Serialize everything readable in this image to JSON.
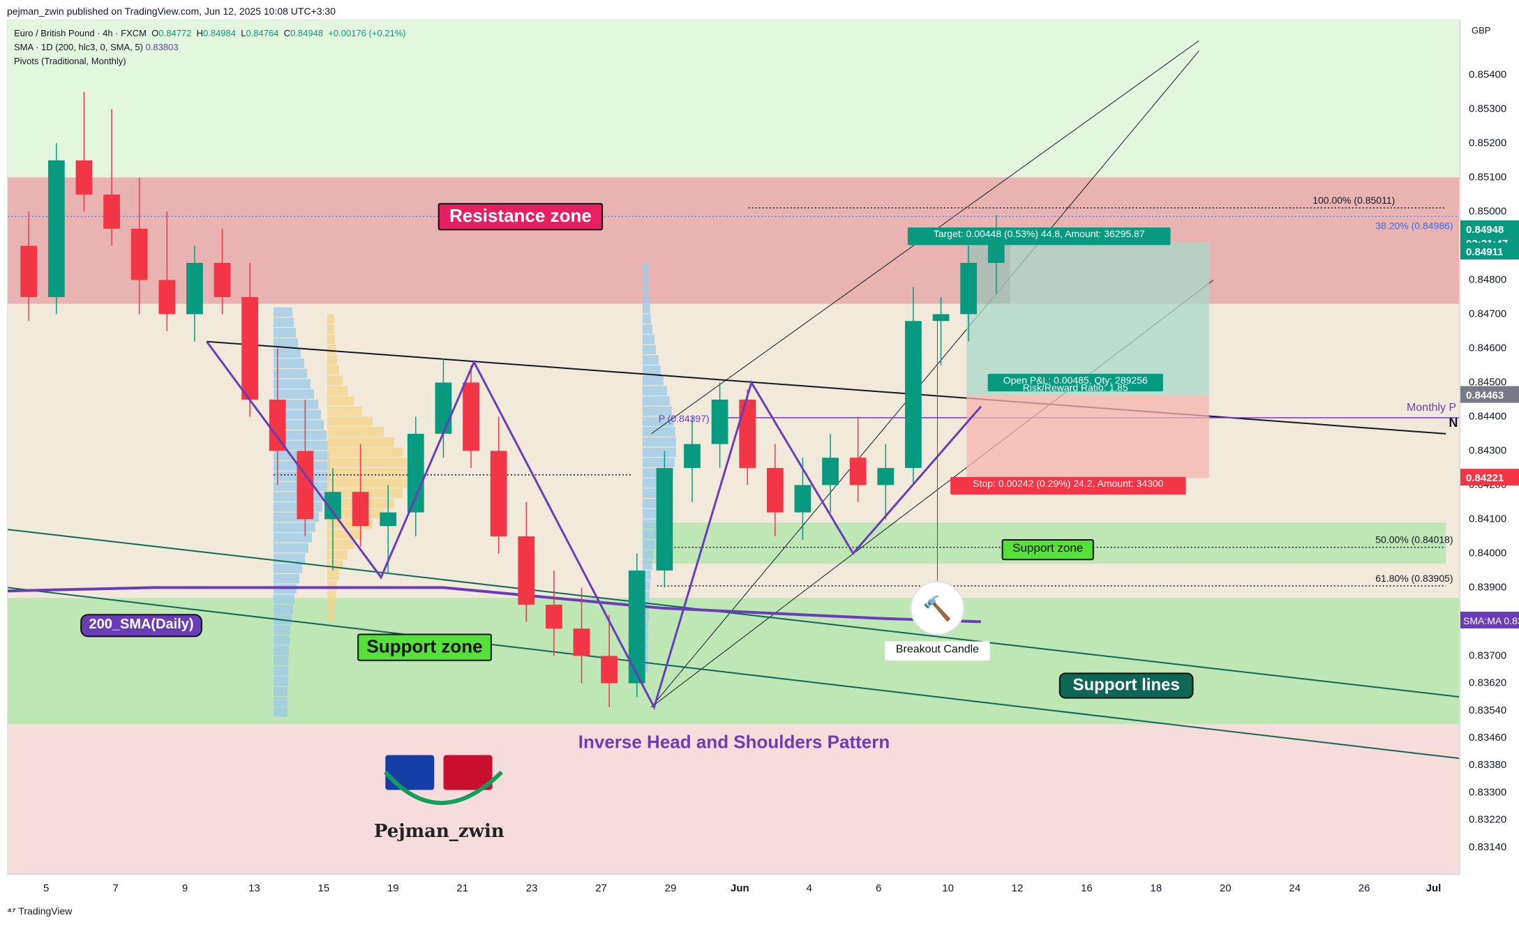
{
  "header": {
    "publisher": "pejman_zwin published on TradingView.com, Jun 12, 2025 10:08 UTC+3:30"
  },
  "legend": {
    "symbol_line": "Euro / British Pound · 4h · FXCM",
    "o_label": "O",
    "o": "0.84772",
    "h_label": "H",
    "h": "0.84984",
    "l_label": "L",
    "l": "0.84764",
    "c_label": "C",
    "c": "0.84948",
    "change": "+0.00176 (+0.21%)",
    "sma_line": "SMA · 1D (200, hlc3, 0, SMA, 5)",
    "sma_value": "0.83803",
    "pivots_line": "Pivots (Traditional, Monthly)"
  },
  "annotations": {
    "resistance_zone": "Resistance zone",
    "support_zone_left": "Support zone",
    "support_zone_right": "Support zone",
    "sma_label": "200_SMA(Daily)",
    "support_lines": "Support lines",
    "pattern": "Inverse Head and Shoulders Pattern",
    "breakout": "Breakout Candle",
    "brand": "Pejman_zwin",
    "target": "Target: 0.00448 (0.53%) 44.8, Amount: 36295.87",
    "open_pl": "Open P&L: 0.00485, Qty: 289256",
    "rr": "Risk/Reward Ratio: 1.85",
    "stop": "Stop: 0.00242 (0.29%) 24.2, Amount: 34300",
    "fib100": "100.00% (0.85011)",
    "fib382": "38.20% (0.84986)",
    "fib50": "50.00% (0.84018)",
    "fib618": "61.80% (0.83905)",
    "pivot_p": "P (0.84397)",
    "monthly": "Monthly P",
    "n_mark": "N"
  },
  "price_scale": {
    "currency": "GBP",
    "ticks": [
      "0.85400",
      "0.85300",
      "0.85200",
      "0.85100",
      "0.85000",
      "0.84800",
      "0.84700",
      "0.84600",
      "0.84500",
      "0.84400",
      "0.84300",
      "0.84200",
      "0.84100",
      "0.84000",
      "0.83900",
      "0.83700",
      "0.83620",
      "0.83540",
      "0.83460",
      "0.83380",
      "0.83300",
      "0.83220",
      "0.83140"
    ],
    "badge_last": "0.84948",
    "badge_countdown": "02:21:47",
    "badge_target": "0.84911",
    "badge_entry": "0.84463",
    "badge_stop": "0.84221",
    "badge_sma_label": "SMA:MA",
    "badge_sma": "0.83803"
  },
  "time_scale": {
    "labels": [
      "5",
      "7",
      "9",
      "13",
      "15",
      "19",
      "21",
      "23",
      "27",
      "29",
      "Jun",
      "4",
      "6",
      "10",
      "12",
      "16",
      "18",
      "20",
      "24",
      "26",
      "Jul"
    ]
  },
  "footer": {
    "brand": "TradingView"
  },
  "colors": {
    "up": "#089981",
    "down": "#f23645",
    "resistance": "#e8b3b0",
    "support": "#bfe6b5",
    "purple": "#6a3db8",
    "accent_teal": "#0e6655"
  },
  "chart_data": {
    "type": "candlestick",
    "symbol": "Euro / British Pound",
    "timeframe": "4h",
    "ylim": [
      0.8306,
      0.8556
    ],
    "zones": [
      {
        "name": "Resistance zone",
        "low": 0.8473,
        "high": 0.851
      },
      {
        "name": "Support zone",
        "low": 0.835,
        "high": 0.8387
      },
      {
        "name": "Support zone",
        "low": 0.8397,
        "high": 0.8409
      }
    ],
    "sma_200_daily": [
      [
        0,
        0.8389
      ],
      [
        0.1,
        0.839
      ],
      [
        0.3,
        0.839
      ],
      [
        0.45,
        0.8384
      ],
      [
        0.6,
        0.8381
      ],
      [
        0.67,
        0.838
      ]
    ],
    "levels": {
      "last": 0.84948,
      "target": 0.84911,
      "entry": 0.84463,
      "stop": 0.84221,
      "pivot": 0.84397,
      "fib_100": 0.85011,
      "fib_38_2": 0.84986,
      "fib_50": 0.84018,
      "fib_61_8": 0.83905,
      "sma": 0.83803
    },
    "pattern_points": [
      [
        0.137,
        0.8462
      ],
      [
        0.257,
        0.8393
      ],
      [
        0.321,
        0.8456
      ],
      [
        0.445,
        0.8355
      ],
      [
        0.512,
        0.845
      ],
      [
        0.582,
        0.84
      ],
      [
        0.67,
        0.8443
      ]
    ],
    "candles_approx": [
      [
        0.849,
        0.85,
        0.8468,
        0.8475
      ],
      [
        0.8475,
        0.852,
        0.847,
        0.8515
      ],
      [
        0.8515,
        0.8535,
        0.85,
        0.8505
      ],
      [
        0.8505,
        0.853,
        0.849,
        0.8495
      ],
      [
        0.8495,
        0.851,
        0.847,
        0.848
      ],
      [
        0.848,
        0.85,
        0.8465,
        0.847
      ],
      [
        0.847,
        0.849,
        0.8462,
        0.8485
      ],
      [
        0.8485,
        0.8495,
        0.847,
        0.8475
      ],
      [
        0.8475,
        0.8485,
        0.844,
        0.8445
      ],
      [
        0.8445,
        0.846,
        0.842,
        0.843
      ],
      [
        0.843,
        0.8445,
        0.8405,
        0.841
      ],
      [
        0.841,
        0.8425,
        0.8395,
        0.8418
      ],
      [
        0.8418,
        0.8432,
        0.8402,
        0.8408
      ],
      [
        0.8408,
        0.842,
        0.8394,
        0.8412
      ],
      [
        0.8412,
        0.844,
        0.8405,
        0.8435
      ],
      [
        0.8435,
        0.8457,
        0.8428,
        0.845
      ],
      [
        0.845,
        0.8455,
        0.8425,
        0.843
      ],
      [
        0.843,
        0.844,
        0.84,
        0.8405
      ],
      [
        0.8405,
        0.8415,
        0.838,
        0.8385
      ],
      [
        0.8385,
        0.8395,
        0.837,
        0.8378
      ],
      [
        0.8378,
        0.839,
        0.8362,
        0.837
      ],
      [
        0.837,
        0.8382,
        0.8355,
        0.8362
      ],
      [
        0.8362,
        0.84,
        0.8358,
        0.8395
      ],
      [
        0.8395,
        0.843,
        0.839,
        0.8425
      ],
      [
        0.8425,
        0.844,
        0.8415,
        0.8432
      ],
      [
        0.8432,
        0.845,
        0.8425,
        0.8445
      ],
      [
        0.8445,
        0.8448,
        0.842,
        0.8425
      ],
      [
        0.8425,
        0.8432,
        0.8405,
        0.8412
      ],
      [
        0.8412,
        0.8428,
        0.8404,
        0.842
      ],
      [
        0.842,
        0.8435,
        0.8412,
        0.8428
      ],
      [
        0.8428,
        0.844,
        0.8415,
        0.842
      ],
      [
        0.842,
        0.8432,
        0.841,
        0.8425
      ],
      [
        0.8425,
        0.8478,
        0.842,
        0.8468
      ],
      [
        0.8468,
        0.8475,
        0.8455,
        0.847
      ],
      [
        0.847,
        0.849,
        0.8462,
        0.8485
      ],
      [
        0.8485,
        0.8499,
        0.8476,
        0.8495
      ]
    ]
  }
}
